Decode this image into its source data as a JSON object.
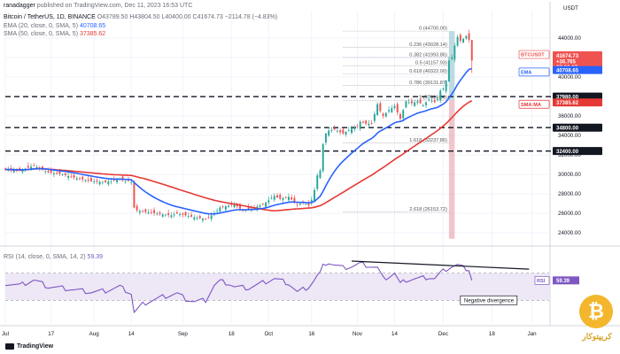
{
  "header": {
    "author": "ranadagger",
    "published": "published on TradingView.com, Dec 11, 2023 16:53 UTC",
    "symbol": "Bitcoin / TetherUS, 1D, BINANCE",
    "ohlc": "O43789.50  H43804.50  L40400.00  C41674.73  −2114.78 (−4.83%)",
    "ema_legend": "EMA (20, close, 0, SMA, 5)",
    "ema_value": "40708.65",
    "sma_legend": "SMA (50, close, 0, SMA, 5)",
    "sma_value": "37385.62",
    "rsi_legend": "RSI (14, close, 0, SMA, 14, 2)",
    "rsi_value": "59.39"
  },
  "brand": {
    "tradingview": "TradingView",
    "watermark_glyph": "₿",
    "watermark_text": "کریپتوکار"
  },
  "colors": {
    "up": "#26a69a",
    "down": "#ef5350",
    "ema": "#2962ff",
    "sma": "#e53935",
    "rsi": "#7e57c2",
    "rsi_fill": "#ede7f6",
    "text": "#131722"
  },
  "chart_data": {
    "type": "candlestick",
    "price_axis": {
      "ylim": [
        23200,
        46800
      ],
      "ticks": [
        "24000.00",
        "26000.00",
        "28000.00",
        "30000.00",
        "32000.00",
        "34000.00",
        "36000.00",
        "38000.00",
        "40000.00",
        "42000.00",
        "44000.00"
      ],
      "unit_label": "USDT"
    },
    "time_axis": {
      "ticks": [
        {
          "label": "Jul",
          "day": 0
        },
        {
          "label": "17",
          "day": 16
        },
        {
          "label": "Aug",
          "day": 31
        },
        {
          "label": "14",
          "day": 44
        },
        {
          "label": "Sep",
          "day": 62
        },
        {
          "label": "18",
          "day": 79
        },
        {
          "label": "Oct",
          "day": 92
        },
        {
          "label": "16",
          "day": 107
        },
        {
          "label": "Nov",
          "day": 123
        },
        {
          "label": "14",
          "day": 136
        },
        {
          "label": "Dec",
          "day": 153
        },
        {
          "label": "18",
          "day": 170
        },
        {
          "label": "Jan",
          "day": 184
        }
      ],
      "last_day": 163,
      "max_day": 190
    },
    "close_anchors": [
      [
        0,
        30500
      ],
      [
        5,
        30400
      ],
      [
        10,
        30900
      ],
      [
        15,
        30200
      ],
      [
        20,
        30000
      ],
      [
        25,
        29600
      ],
      [
        30,
        29300
      ],
      [
        35,
        29200
      ],
      [
        40,
        29500
      ],
      [
        42,
        29300
      ],
      [
        43,
        29400
      ],
      [
        44,
        29200
      ],
      [
        45,
        26600
      ],
      [
        46,
        26300
      ],
      [
        48,
        26200
      ],
      [
        50,
        26100
      ],
      [
        55,
        25900
      ],
      [
        58,
        25800
      ],
      [
        60,
        26000
      ],
      [
        63,
        25800
      ],
      [
        66,
        25600
      ],
      [
        70,
        25400
      ],
      [
        73,
        26000
      ],
      [
        75,
        26600
      ],
      [
        78,
        26800
      ],
      [
        80,
        26900
      ],
      [
        83,
        26300
      ],
      [
        86,
        26500
      ],
      [
        90,
        26900
      ],
      [
        94,
        27800
      ],
      [
        96,
        27500
      ],
      [
        99,
        27700
      ],
      [
        102,
        26900
      ],
      [
        104,
        27100
      ],
      [
        106,
        26800
      ],
      [
        107,
        27400
      ],
      [
        108,
        28400
      ],
      [
        109,
        29900
      ],
      [
        110,
        30400
      ],
      [
        111,
        33100
      ],
      [
        112,
        34200
      ],
      [
        113,
        34500
      ],
      [
        115,
        34600
      ],
      [
        118,
        34200
      ],
      [
        121,
        34700
      ],
      [
        123,
        34900
      ],
      [
        124,
        35400
      ],
      [
        126,
        35200
      ],
      [
        128,
        35200
      ],
      [
        130,
        37200
      ],
      [
        131,
        36500
      ],
      [
        132,
        36000
      ],
      [
        134,
        36600
      ],
      [
        136,
        37000
      ],
      [
        138,
        35700
      ],
      [
        140,
        37500
      ],
      [
        142,
        37300
      ],
      [
        144,
        37500
      ],
      [
        146,
        37100
      ],
      [
        148,
        37700
      ],
      [
        150,
        37400
      ],
      [
        151,
        37700
      ],
      [
        152,
        38600
      ],
      [
        153,
        38800
      ],
      [
        154,
        39600
      ],
      [
        155,
        41700
      ],
      [
        156,
        42000
      ],
      [
        157,
        43200
      ],
      [
        158,
        44100
      ],
      [
        159,
        43700
      ],
      [
        160,
        43900
      ],
      [
        161,
        44200
      ],
      [
        162,
        43800
      ],
      [
        163,
        41675
      ]
    ],
    "indicator_values": {
      "ema20": 40708.65,
      "sma50": 37385.62,
      "rsi14": 59.39
    },
    "horizontal_levels": [
      {
        "price": 37980,
        "label": "37980.00",
        "style": "dashed"
      },
      {
        "price": 34800,
        "label": "34800.00",
        "style": "dashed"
      },
      {
        "price": 32400,
        "label": "32400.00",
        "style": "dashed"
      }
    ],
    "current_price": {
      "label": "41674.73",
      "change": "+36.765",
      "countdown": "07:06:07",
      "symbol": "BTCUSDT"
    },
    "axis_badges": {
      "ema": "EMA",
      "ema_value": "40708.65",
      "sma": "SMA:MA",
      "sma_value": "37385.62"
    },
    "fibonacci": [
      {
        "level": "0",
        "price": "44700.00"
      },
      {
        "level": "0.236",
        "price": "43028.14"
      },
      {
        "level": "0.382",
        "price": "41993.86"
      },
      {
        "level": "0.5",
        "price": "41157.93"
      },
      {
        "level": "0.618",
        "price": "40322.00"
      },
      {
        "level": "0.786",
        "price": "39131.87"
      },
      {
        "level": "1",
        "price": "37616.00"
      },
      {
        "level": "1.618",
        "price": "33237.86"
      },
      {
        "level": "2.618",
        "price": "26153.72"
      }
    ],
    "fib_values": [
      44700,
      43028.14,
      41993.86,
      41157.93,
      40322,
      39131.87,
      37616,
      33237.86,
      26153.72
    ],
    "long_position_tool": {
      "entry": 37616,
      "target": 44700,
      "stop": 23400,
      "day_start": 155,
      "day_end": 157
    },
    "rsi": {
      "ylim": [
        -5,
        105
      ],
      "levels": [
        30,
        70
      ],
      "anchors": [
        [
          0,
          55
        ],
        [
          5,
          52
        ],
        [
          10,
          60
        ],
        [
          15,
          50
        ],
        [
          20,
          48
        ],
        [
          25,
          45
        ],
        [
          30,
          42
        ],
        [
          35,
          44
        ],
        [
          40,
          50
        ],
        [
          44,
          40
        ],
        [
          45,
          12
        ],
        [
          46,
          16
        ],
        [
          48,
          24
        ],
        [
          50,
          28
        ],
        [
          55,
          35
        ],
        [
          60,
          40
        ],
        [
          63,
          32
        ],
        [
          66,
          28
        ],
        [
          70,
          30
        ],
        [
          73,
          52
        ],
        [
          75,
          58
        ],
        [
          78,
          55
        ],
        [
          80,
          50
        ],
        [
          85,
          48
        ],
        [
          90,
          56
        ],
        [
          94,
          62
        ],
        [
          99,
          55
        ],
        [
          102,
          42
        ],
        [
          106,
          50
        ],
        [
          108,
          60
        ],
        [
          109,
          66
        ],
        [
          110,
          70
        ],
        [
          111,
          80
        ],
        [
          112,
          85
        ],
        [
          113,
          86
        ],
        [
          115,
          82
        ],
        [
          118,
          78
        ],
        [
          121,
          80
        ],
        [
          124,
          84
        ],
        [
          128,
          80
        ],
        [
          130,
          78
        ],
        [
          132,
          62
        ],
        [
          134,
          65
        ],
        [
          136,
          70
        ],
        [
          138,
          54
        ],
        [
          140,
          60
        ],
        [
          144,
          62
        ],
        [
          148,
          64
        ],
        [
          150,
          62
        ],
        [
          152,
          70
        ],
        [
          154,
          76
        ],
        [
          156,
          80
        ],
        [
          158,
          82
        ],
        [
          160,
          78
        ],
        [
          162,
          76
        ],
        [
          163,
          59.39
        ]
      ],
      "divergence": {
        "from": [
          121,
          88
        ],
        "to": [
          183,
          76
        ],
        "label": "Negative divergence"
      },
      "badge": "RSI",
      "badge_value": "59.39"
    }
  }
}
